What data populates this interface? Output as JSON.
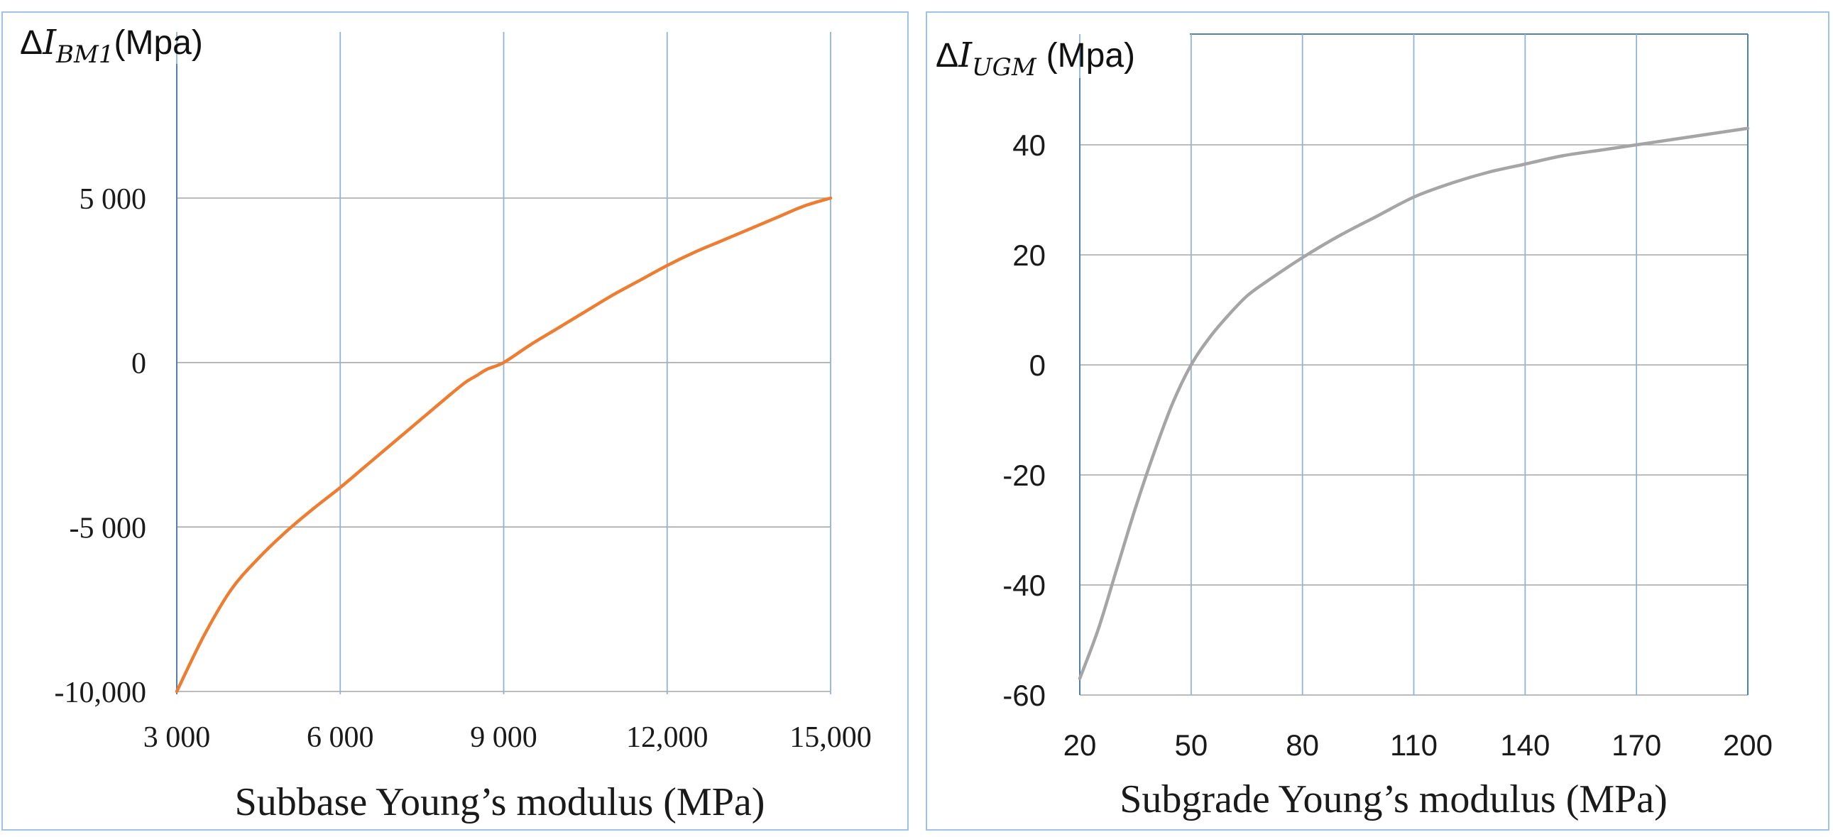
{
  "colors": {
    "line_left": "#ed7d31",
    "line_right": "#a5a5a5",
    "frame": "#9dc3e6"
  },
  "chart_data": [
    {
      "type": "line",
      "title": "",
      "ylabel": {
        "delta": "Δ",
        "symbol": "I",
        "subscript": "BM1",
        "unit": "(Mpa)"
      },
      "xlabel": "Subbase Young’s modulus (MPa)",
      "xlim": [
        3000,
        15000
      ],
      "ylim": [
        -10000,
        10000
      ],
      "x_ticks": [
        3000,
        6000,
        9000,
        12000,
        15000
      ],
      "x_tick_labels": [
        "3 000",
        "6 000",
        "9 000",
        "12,000",
        "15,000"
      ],
      "y_ticks": [
        -10000,
        -5000,
        0,
        5000
      ],
      "y_tick_labels": [
        "-10,000",
        "-5 000",
        "0",
        "5 000"
      ],
      "grid": true,
      "series": [
        {
          "name": "ΔI_BM1",
          "color": "#ed7d31",
          "x": [
            3000,
            3500,
            4000,
            4500,
            5000,
            5500,
            6000,
            6500,
            7000,
            7500,
            8000,
            8300,
            8500,
            8700,
            9000,
            9500,
            10000,
            10500,
            11000,
            11500,
            12000,
            12500,
            13000,
            13500,
            14000,
            14500,
            15000
          ],
          "y": [
            -10000,
            -8300,
            -6900,
            -5950,
            -5150,
            -4450,
            -3800,
            -3100,
            -2400,
            -1700,
            -1000,
            -600,
            -400,
            -200,
            0,
            550,
            1050,
            1550,
            2050,
            2500,
            2950,
            3350,
            3700,
            4050,
            4400,
            4750,
            5000
          ]
        }
      ]
    },
    {
      "type": "line",
      "title": "",
      "ylabel": {
        "delta": "Δ",
        "symbol": "I",
        "subscript": "UGM",
        "unit": "(Mpa)"
      },
      "xlabel": "Subgrade Young’s modulus  (MPa)",
      "xlim": [
        20,
        200
      ],
      "ylim": [
        -60,
        60
      ],
      "x_ticks": [
        20,
        50,
        80,
        110,
        140,
        170,
        200
      ],
      "x_tick_labels": [
        "20",
        "50",
        "80",
        "110",
        "140",
        "170",
        "200"
      ],
      "y_ticks": [
        -60,
        -40,
        -20,
        0,
        20,
        40
      ],
      "y_tick_labels": [
        "-60",
        "-40",
        "-20",
        "0",
        "20",
        "40"
      ],
      "grid": true,
      "series": [
        {
          "name": "ΔI_UGM",
          "color": "#a5a5a5",
          "x": [
            20,
            25,
            30,
            35,
            40,
            45,
            50,
            55,
            60,
            65,
            70,
            80,
            90,
            100,
            110,
            120,
            130,
            140,
            150,
            160,
            170,
            180,
            190,
            200
          ],
          "y": [
            -57,
            -48,
            -37,
            -26,
            -16,
            -7,
            0,
            5,
            9,
            12.5,
            15,
            19.5,
            23.5,
            27,
            30.5,
            33,
            35,
            36.5,
            38,
            39,
            40,
            41,
            42,
            43
          ]
        }
      ]
    }
  ]
}
